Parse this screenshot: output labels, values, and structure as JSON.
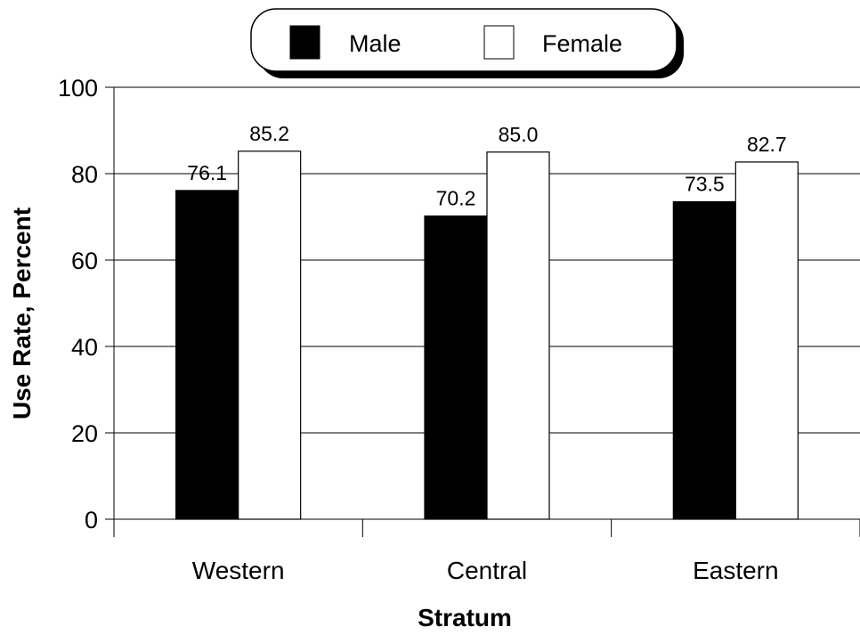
{
  "chart_data": {
    "type": "bar",
    "categories": [
      "Western",
      "Central",
      "Eastern"
    ],
    "series": [
      {
        "name": "Male",
        "values": [
          76.1,
          70.2,
          73.5
        ],
        "labels": [
          "76.1",
          "70.2",
          "73.5"
        ],
        "color": "#000000"
      },
      {
        "name": "Female",
        "values": [
          85.2,
          85.0,
          82.7
        ],
        "labels": [
          "85.2",
          "85.0",
          "82.7"
        ],
        "color": "#ffffff"
      }
    ],
    "xlabel": "Stratum",
    "ylabel": "Use Rate, Percent",
    "ylim": [
      0,
      100
    ],
    "yticks": [
      "0",
      "20",
      "40",
      "60",
      "80",
      "100"
    ],
    "grid": "horizontal",
    "legend_position": "top-center"
  }
}
